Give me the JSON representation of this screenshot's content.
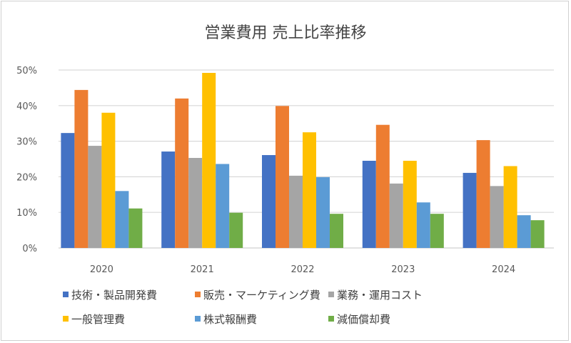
{
  "chart_data": {
    "type": "bar",
    "title": "営業費用 売上比率推移",
    "xlabel": "",
    "ylabel": "",
    "ylim": [
      0,
      50
    ],
    "yticks": [
      "0%",
      "10%",
      "20%",
      "30%",
      "40%",
      "50%"
    ],
    "grid": true,
    "legend_position": "bottom",
    "categories": [
      "2020",
      "2021",
      "2022",
      "2023",
      "2024"
    ],
    "series": [
      {
        "name": "技術・製品開発費",
        "color": "#4472C4",
        "values": [
          32.3,
          27.1,
          26.1,
          24.5,
          21.1
        ]
      },
      {
        "name": "販売・マーケティング費",
        "color": "#ED7D31",
        "values": [
          44.4,
          42.0,
          39.9,
          34.6,
          30.3
        ]
      },
      {
        "name": "業務・運用コスト",
        "color": "#A5A5A5",
        "values": [
          28.7,
          25.3,
          20.3,
          18.1,
          17.4
        ]
      },
      {
        "name": "一般管理費",
        "color": "#FFC000",
        "values": [
          38.0,
          49.2,
          32.5,
          24.5,
          23.0
        ]
      },
      {
        "name": "株式報酬費",
        "color": "#5B9BD5",
        "values": [
          16.0,
          23.6,
          19.9,
          12.8,
          9.2
        ]
      },
      {
        "name": "減価償却費",
        "color": "#70AD47",
        "values": [
          11.1,
          9.9,
          9.6,
          9.6,
          7.8
        ]
      }
    ]
  }
}
